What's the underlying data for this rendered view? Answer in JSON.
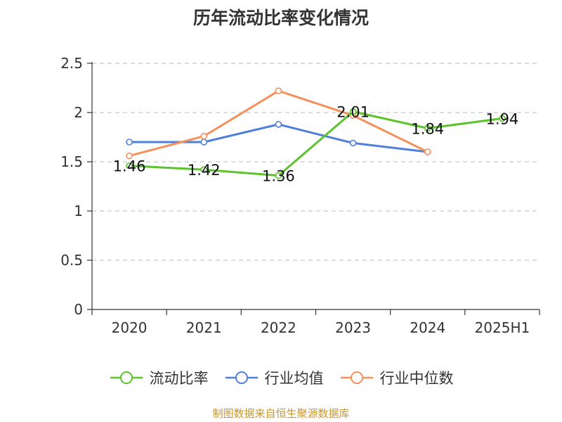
{
  "chart_data": {
    "type": "line",
    "title": "历年流动比率变化情况",
    "categories": [
      "2020",
      "2021",
      "2022",
      "2023",
      "2024",
      "2025H1"
    ],
    "ylim": [
      0,
      2.5
    ],
    "yticks": [
      "0",
      "0.5",
      "1",
      "1.5",
      "2",
      "2.5"
    ],
    "ytick_values": [
      0,
      0.5,
      1,
      1.5,
      2,
      2.5
    ],
    "grid": true,
    "legend_position": "bottom",
    "series": [
      {
        "name": "流动比率",
        "color": "#5cc32c",
        "values": [
          1.46,
          1.42,
          1.36,
          2.01,
          1.84,
          1.94
        ],
        "labels": [
          "1.46",
          "1.42",
          "1.36",
          "2.01",
          "1.84",
          "1.94"
        ]
      },
      {
        "name": "行业均值",
        "color": "#4e7fdb",
        "values": [
          1.7,
          1.7,
          1.88,
          1.69,
          1.6,
          null
        ]
      },
      {
        "name": "行业中位数",
        "color": "#f5905a",
        "values": [
          1.56,
          1.76,
          2.22,
          1.97,
          1.6,
          null
        ]
      }
    ]
  },
  "source": "制图数据来自恒生聚源数据库"
}
